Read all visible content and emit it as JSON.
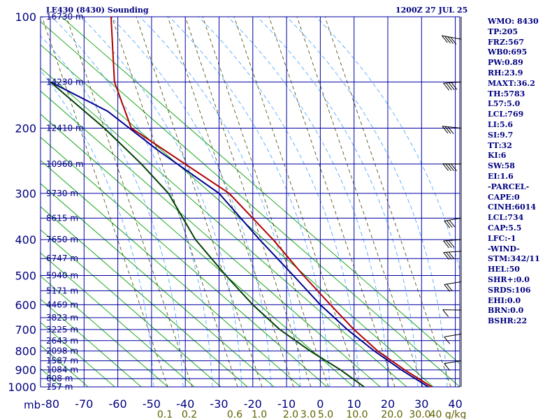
{
  "header": {
    "title": "LE430 (8430) Sounding",
    "time": "1200Z 27 JUL 25"
  },
  "stats": [
    "WMO: 8430",
    "TP:205",
    "FRZ:567",
    "WB0:695",
    "PW:0.89",
    "RH:23.9",
    "MAXT:36.2",
    "TH:5783",
    "L57:5.0",
    "LCL:769",
    "LI:5.6",
    "SI:9.7",
    "TT:32",
    "KI:6",
    "SW:58",
    "EI:1.6",
    "-PARCEL-",
    "CAPE:0",
    "CINH:6014",
    "LCL:734",
    "CAP:5.5",
    "LFC:-1",
    "-WIND-",
    "STM:342/11",
    "HEL:50",
    "SHR+:0.0",
    "SRDS:106",
    "EHI:0.0",
    "BRN:0.0",
    "BSHR:22"
  ],
  "chart_data": {
    "type": "line",
    "title": "LE430 (8430) Sounding",
    "subtitle": "1200Z 27 JUL 25",
    "xlabel": "",
    "ylabel": "mb",
    "xlim": [
      -80,
      40
    ],
    "ylim": [
      1000,
      100
    ],
    "x_ticks": [
      -80,
      -70,
      -60,
      -50,
      -40,
      -30,
      -20,
      -10,
      0,
      10,
      20,
      30,
      40
    ],
    "pressure_levels": [
      100,
      200,
      300,
      400,
      500,
      600,
      700,
      800,
      900,
      1000
    ],
    "height_labels": [
      {
        "p": 100,
        "label": "16730 m"
      },
      {
        "p": 150,
        "label": "14230 m"
      },
      {
        "p": 200,
        "label": "12410 m"
      },
      {
        "p": 250,
        "label": "10960 m"
      },
      {
        "p": 300,
        "label": "9730 m"
      },
      {
        "p": 350,
        "label": "8615 m"
      },
      {
        "p": 400,
        "label": "7650 m"
      },
      {
        "p": 450,
        "label": "6747 m"
      },
      {
        "p": 500,
        "label": "5940 m"
      },
      {
        "p": 550,
        "label": "5171 m"
      },
      {
        "p": 600,
        "label": "4469 m"
      },
      {
        "p": 650,
        "label": "3823 m"
      },
      {
        "p": 700,
        "label": "3225 m"
      },
      {
        "p": 750,
        "label": "2643 m"
      },
      {
        "p": 800,
        "label": "2098 m"
      },
      {
        "p": 850,
        "label": "1587 m"
      },
      {
        "p": 900,
        "label": "1084 m"
      },
      {
        "p": 950,
        "label": "608 m"
      },
      {
        "p": 1000,
        "label": "157 m"
      }
    ],
    "mixing_ratio_labels": [
      "0.1",
      "0.2",
      "0.6",
      "1.0",
      "2.0",
      "3.0",
      "5.0",
      "10.0",
      "20.0",
      "30.0",
      "40 g/kg"
    ],
    "series": [
      {
        "name": "",
        "color": "#b00000",
        "points": [
          [
            33,
            1000
          ],
          [
            25,
            900
          ],
          [
            17,
            800
          ],
          [
            10,
            700
          ],
          [
            3,
            600
          ],
          [
            -5,
            500
          ],
          [
            -14,
            400
          ],
          [
            -27,
            300
          ],
          [
            -56,
            200
          ],
          [
            -61,
            150
          ],
          [
            -62,
            100
          ]
        ]
      },
      {
        "name": "",
        "color": "#000090",
        "points": [
          [
            32,
            1000
          ],
          [
            24,
            900
          ],
          [
            16,
            800
          ],
          [
            8,
            700
          ],
          [
            0,
            600
          ],
          [
            -8,
            500
          ],
          [
            -18,
            400
          ],
          [
            -30,
            300
          ],
          [
            -48,
            230
          ],
          [
            -63,
            180
          ],
          [
            -80,
            150
          ]
        ]
      },
      {
        "name": "",
        "color": "#004000",
        "points": [
          [
            13,
            1000
          ],
          [
            6,
            900
          ],
          [
            -3,
            800
          ],
          [
            -12,
            700
          ],
          [
            -20,
            600
          ],
          [
            -28,
            500
          ],
          [
            -37,
            400
          ],
          [
            -45,
            300
          ],
          [
            -53,
            250
          ],
          [
            -64,
            200
          ],
          [
            -80,
            150
          ]
        ]
      }
    ],
    "wind_barbs": [
      {
        "p": 850,
        "dir": 300,
        "speed": 10
      },
      {
        "p": 720,
        "dir": 300,
        "speed": 10
      },
      {
        "p": 620,
        "dir": 290,
        "speed": 10
      },
      {
        "p": 520,
        "dir": 300,
        "speed": 20
      },
      {
        "p": 430,
        "dir": 295,
        "speed": 25
      },
      {
        "p": 400,
        "dir": 295,
        "speed": 25
      },
      {
        "p": 350,
        "dir": 300,
        "speed": 30
      },
      {
        "p": 250,
        "dir": 290,
        "speed": 35
      },
      {
        "p": 200,
        "dir": 285,
        "speed": 30
      },
      {
        "p": 150,
        "dir": 295,
        "speed": 40
      },
      {
        "p": 115,
        "dir": 280,
        "speed": 35
      }
    ],
    "grid": true
  }
}
